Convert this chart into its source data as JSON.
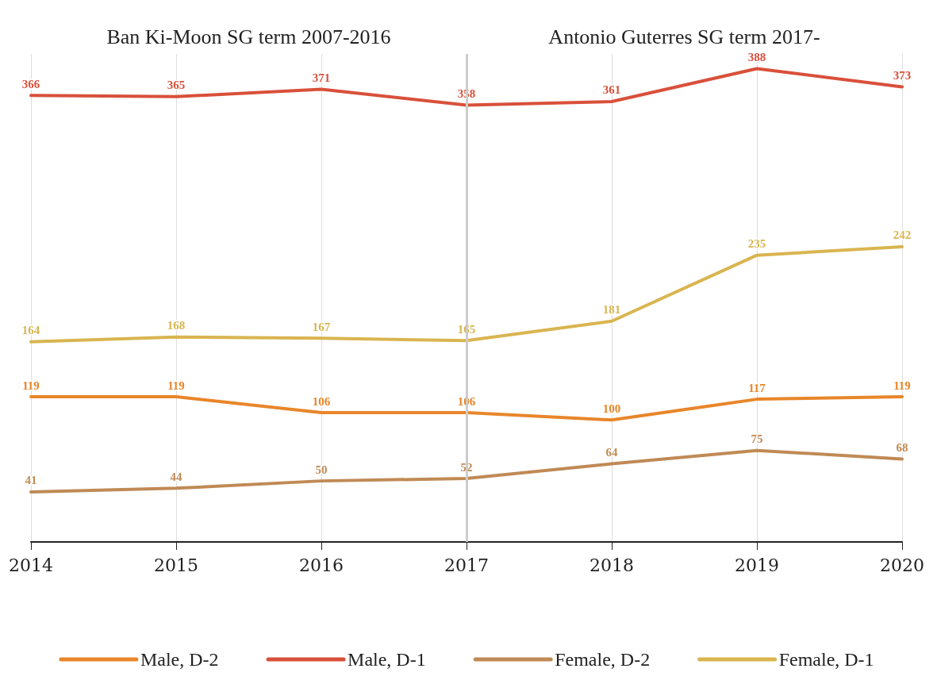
{
  "chart_data": {
    "type": "line",
    "categories": [
      "2014",
      "2015",
      "2016",
      "2017",
      "2018",
      "2019",
      "2020"
    ],
    "series": [
      {
        "name": "Male, D-2",
        "color": "#e8862a",
        "values": [
          119,
          119,
          106,
          106,
          100,
          117,
          119
        ]
      },
      {
        "name": "Male, D-1",
        "color": "#d9503a",
        "values": [
          366,
          365,
          371,
          358,
          361,
          388,
          373
        ]
      },
      {
        "name": "Female, D-2",
        "color": "#c08a55",
        "values": [
          41,
          44,
          50,
          52,
          64,
          75,
          68
        ]
      },
      {
        "name": "Female, D-1",
        "color": "#d9b550",
        "values": [
          164,
          168,
          167,
          165,
          181,
          235,
          242
        ]
      }
    ],
    "annotations": [
      "Ban Ki-Moon SG term 2007-2016",
      "Antonio Guterres SG term 2017-"
    ],
    "ref_lines": [
      {
        "axis": "x",
        "value": "2017",
        "color": "#cccccc"
      }
    ],
    "data_labels": true,
    "grid": "x",
    "legend": "bottom",
    "marker": "none",
    "line_style": "solid"
  }
}
